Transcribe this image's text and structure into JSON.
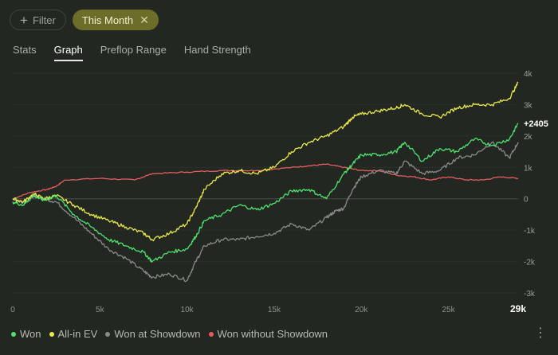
{
  "filters": {
    "filter_label": "Filter",
    "active_label": "This Month"
  },
  "tabs": [
    {
      "label": "Stats",
      "active": false
    },
    {
      "label": "Graph",
      "active": true
    },
    {
      "label": "Preflop Range",
      "active": false
    },
    {
      "label": "Hand Strength",
      "active": false
    }
  ],
  "chart_data": {
    "type": "line",
    "x_ticks": [
      "0",
      "5k",
      "10k",
      "15k",
      "20k",
      "25k"
    ],
    "x_ticks_values": [
      0,
      5000,
      10000,
      15000,
      20000,
      25000
    ],
    "x_end_label": "29k",
    "x_max": 29000,
    "y_ticks": [
      "4k",
      "3k",
      "2k",
      "1k",
      "0",
      "-1k",
      "-2k",
      "-3k"
    ],
    "y_ticks_values": [
      4000,
      3000,
      2000,
      1000,
      0,
      -1000,
      -2000,
      -3000
    ],
    "ylim": [
      -3000,
      4000
    ],
    "end_label": "+2405",
    "series": [
      {
        "name": "Won",
        "color": "#4fe36e",
        "x": [
          0,
          600,
          1200,
          1800,
          2500,
          3500,
          4500,
          5500,
          6500,
          7500,
          8000,
          9000,
          10000,
          10500,
          11000,
          12000,
          13000,
          14000,
          15000,
          16000,
          17000,
          18000,
          19000,
          19500,
          20000,
          21000,
          22000,
          22500,
          23500,
          24500,
          25500,
          26500,
          27500,
          28500,
          29000
        ],
        "y": [
          -100,
          -200,
          100,
          -50,
          100,
          -500,
          -900,
          -1300,
          -1500,
          -1700,
          -2000,
          -1700,
          -1600,
          -1200,
          -700,
          -500,
          -200,
          -350,
          -150,
          250,
          300,
          0,
          800,
          1100,
          1400,
          1400,
          1500,
          1800,
          1200,
          1600,
          1500,
          1900,
          1700,
          1900,
          2405
        ]
      },
      {
        "name": "All-in EV",
        "color": "#eae94a",
        "x": [
          0,
          600,
          1200,
          1800,
          2500,
          3500,
          4500,
          5500,
          6500,
          7500,
          8000,
          9000,
          10000,
          10500,
          11000,
          12000,
          13000,
          14000,
          15000,
          16000,
          17000,
          18000,
          19000,
          19500,
          20000,
          21000,
          22000,
          22500,
          23500,
          24500,
          25500,
          26500,
          27500,
          28500,
          29000
        ],
        "y": [
          0,
          -100,
          150,
          0,
          100,
          -200,
          -500,
          -700,
          -900,
          -1100,
          -1300,
          -1100,
          -800,
          -300,
          300,
          800,
          900,
          800,
          1000,
          1500,
          1800,
          2000,
          2300,
          2600,
          2700,
          2800,
          2900,
          3000,
          2700,
          2600,
          2900,
          3000,
          3000,
          3200,
          3700
        ]
      },
      {
        "name": "Won at Showdown",
        "color": "#8a8a8a",
        "x": [
          0,
          600,
          1200,
          1800,
          2500,
          3500,
          4500,
          5500,
          6500,
          7500,
          8000,
          9000,
          10000,
          10500,
          11000,
          12000,
          13000,
          14000,
          15000,
          16000,
          17000,
          18000,
          18500,
          19000,
          19500,
          20000,
          21000,
          22000,
          22500,
          23500,
          24500,
          25500,
          26500,
          27500,
          28500,
          29000
        ],
        "y": [
          0,
          -100,
          100,
          0,
          -100,
          -600,
          -1100,
          -1600,
          -1900,
          -2300,
          -2500,
          -2400,
          -2600,
          -2000,
          -1500,
          -1300,
          -1300,
          -1200,
          -1100,
          -800,
          -1000,
          -600,
          -400,
          -300,
          300,
          700,
          900,
          800,
          1200,
          800,
          900,
          1300,
          1400,
          1800,
          1300,
          1800
        ]
      },
      {
        "name": "Won without Showdown",
        "color": "#e65c5c",
        "x": [
          0,
          1000,
          2000,
          2500,
          3000,
          5000,
          7000,
          8000,
          10000,
          12000,
          14000,
          16000,
          17000,
          18000,
          19000,
          20000,
          21000,
          22000,
          23000,
          24000,
          25000,
          26000,
          27000,
          28000,
          29000
        ],
        "y": [
          0,
          200,
          300,
          400,
          600,
          650,
          600,
          800,
          850,
          900,
          900,
          1000,
          1050,
          1100,
          1000,
          900,
          900,
          750,
          700,
          600,
          700,
          600,
          600,
          700,
          650
        ]
      }
    ]
  }
}
